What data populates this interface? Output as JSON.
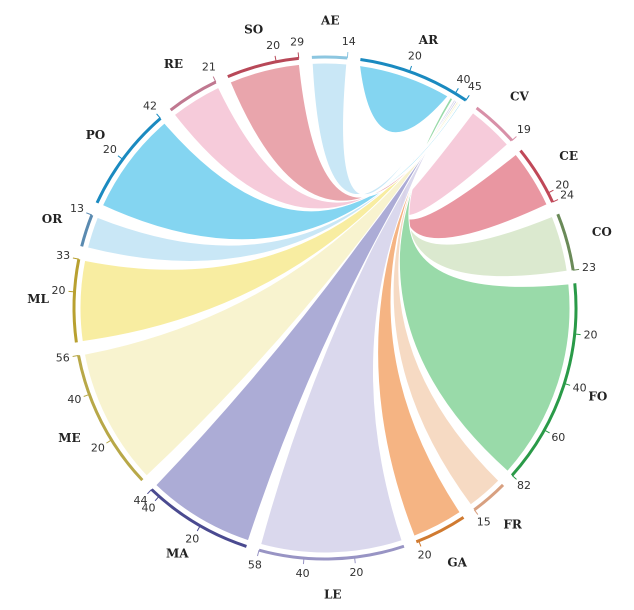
{
  "chart_data": {
    "type": "chord",
    "hub": "AR",
    "segments": [
      {
        "name": "AE",
        "value": 14,
        "ticks": [
          14
        ],
        "color": "#c6e6f5",
        "arc_color": "#8cc6e0"
      },
      {
        "name": "AR",
        "value": 45,
        "ticks": [
          20,
          40,
          45
        ],
        "color": "#7dd3f0",
        "arc_color": "#1a8ac0"
      },
      {
        "name": "CV",
        "value": 19,
        "ticks": [
          19
        ],
        "color": "#f6c8d8",
        "arc_color": "#d890a8"
      },
      {
        "name": "CE",
        "value": 24,
        "ticks": [
          20,
          24
        ],
        "color": "#e8909c",
        "arc_color": "#c04858"
      },
      {
        "name": "CO",
        "value": 23,
        "ticks": [
          23
        ],
        "color": "#d9e8cc",
        "arc_color": "#6a8a58"
      },
      {
        "name": "FO",
        "value": 82,
        "ticks": [
          20,
          40,
          60,
          82
        ],
        "color": "#94d8a4",
        "arc_color": "#2a9a48"
      },
      {
        "name": "FR",
        "value": 15,
        "ticks": [
          15
        ],
        "color": "#f5d8c0",
        "arc_color": "#d8a080"
      },
      {
        "name": "GA",
        "value": 21,
        "ticks": [
          20
        ],
        "color": "#f4b07c",
        "arc_color": "#d07a30"
      },
      {
        "name": "LE",
        "value": 58,
        "ticks": [
          20,
          40,
          58
        ],
        "color": "#d8d6ec",
        "arc_color": "#9894c4"
      },
      {
        "name": "MA",
        "value": 44,
        "ticks": [
          20,
          40,
          44
        ],
        "color": "#a8a8d4",
        "arc_color": "#4a4a90"
      },
      {
        "name": "ME",
        "value": 56,
        "ticks": [
          20,
          40,
          56
        ],
        "color": "#f8f2cc",
        "arc_color": "#b8a848"
      },
      {
        "name": "ML",
        "value": 33,
        "ticks": [
          20,
          33
        ],
        "color": "#f8ec9c",
        "arc_color": "#b8a030"
      },
      {
        "name": "OR",
        "value": 13,
        "ticks": [
          13
        ],
        "color": "#c6e6f5",
        "arc_color": "#5a8ab0"
      },
      {
        "name": "PO",
        "value": 42,
        "ticks": [
          20,
          42
        ],
        "color": "#7dd3f0",
        "arc_color": "#1a8ac0"
      },
      {
        "name": "RE",
        "value": 21,
        "ticks": [
          21
        ],
        "color": "#f6c8d8",
        "arc_color": "#c07890"
      },
      {
        "name": "SO",
        "value": 29,
        "ticks": [
          20,
          29
        ],
        "color": "#e8a0a8",
        "arc_color": "#b84858"
      }
    ]
  }
}
